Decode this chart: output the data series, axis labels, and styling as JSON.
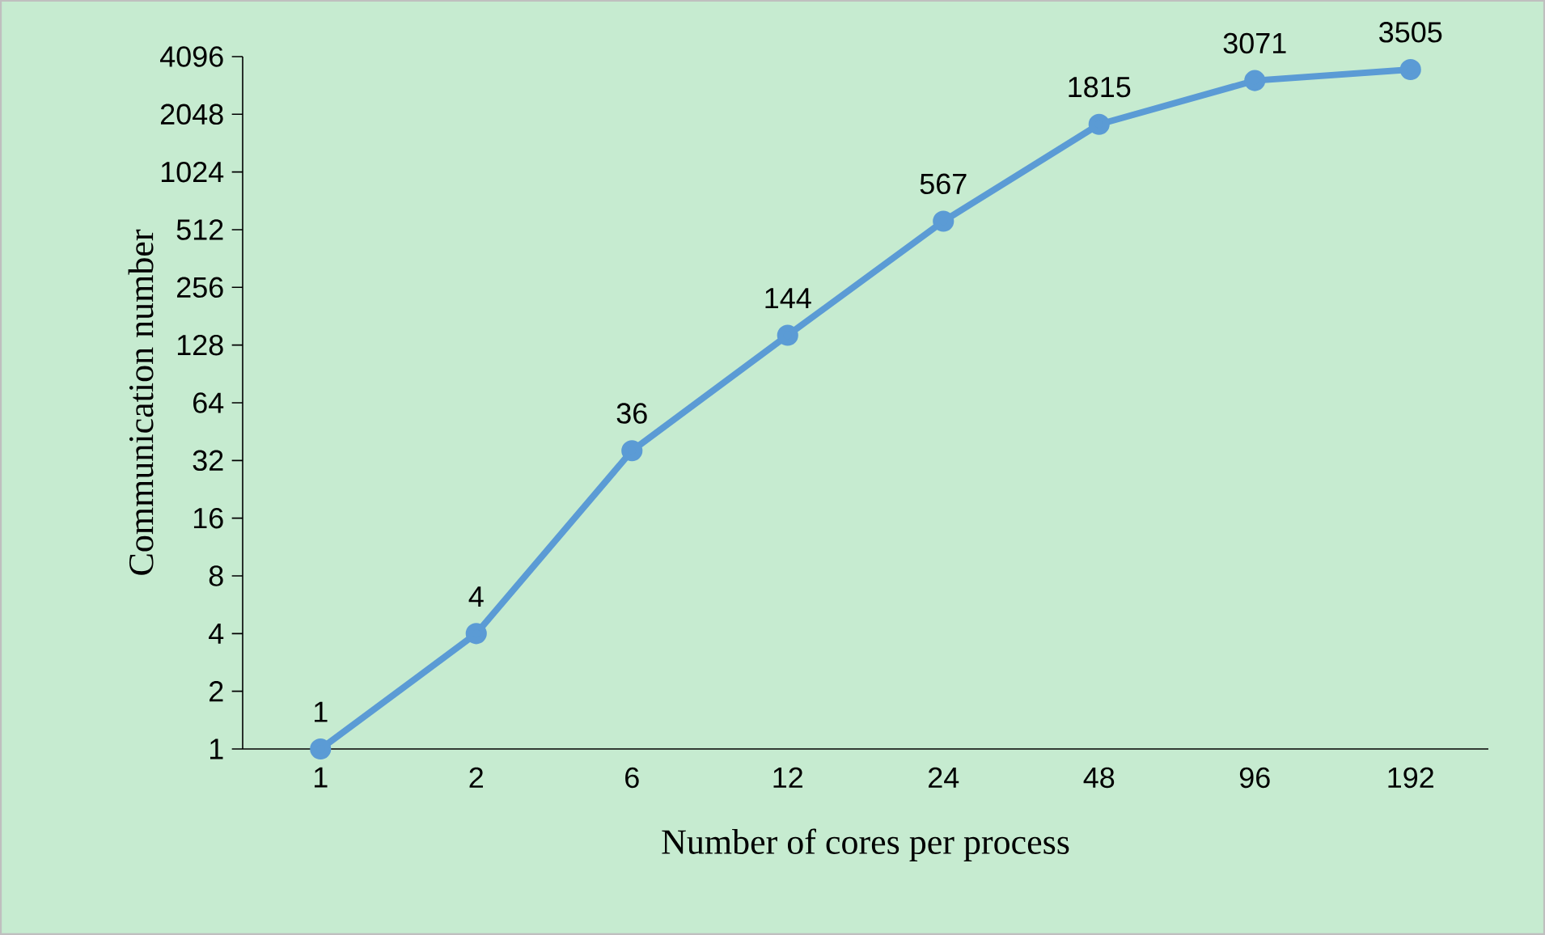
{
  "chart_data": {
    "type": "line",
    "xlabel": "Number of cores per process",
    "ylabel": "Communication number",
    "categories": [
      "1",
      "2",
      "6",
      "12",
      "24",
      "48",
      "96",
      "192"
    ],
    "values": [
      1,
      4,
      36,
      144,
      567,
      1815,
      3071,
      3505
    ],
    "color": "#5b9bd5",
    "log": "y",
    "ylim": [
      1,
      4096
    ],
    "yticks": [
      1,
      2,
      4,
      8,
      16,
      32,
      64,
      128,
      256,
      512,
      1024,
      2048,
      4096
    ],
    "data_labels": true,
    "marker": "circle"
  }
}
